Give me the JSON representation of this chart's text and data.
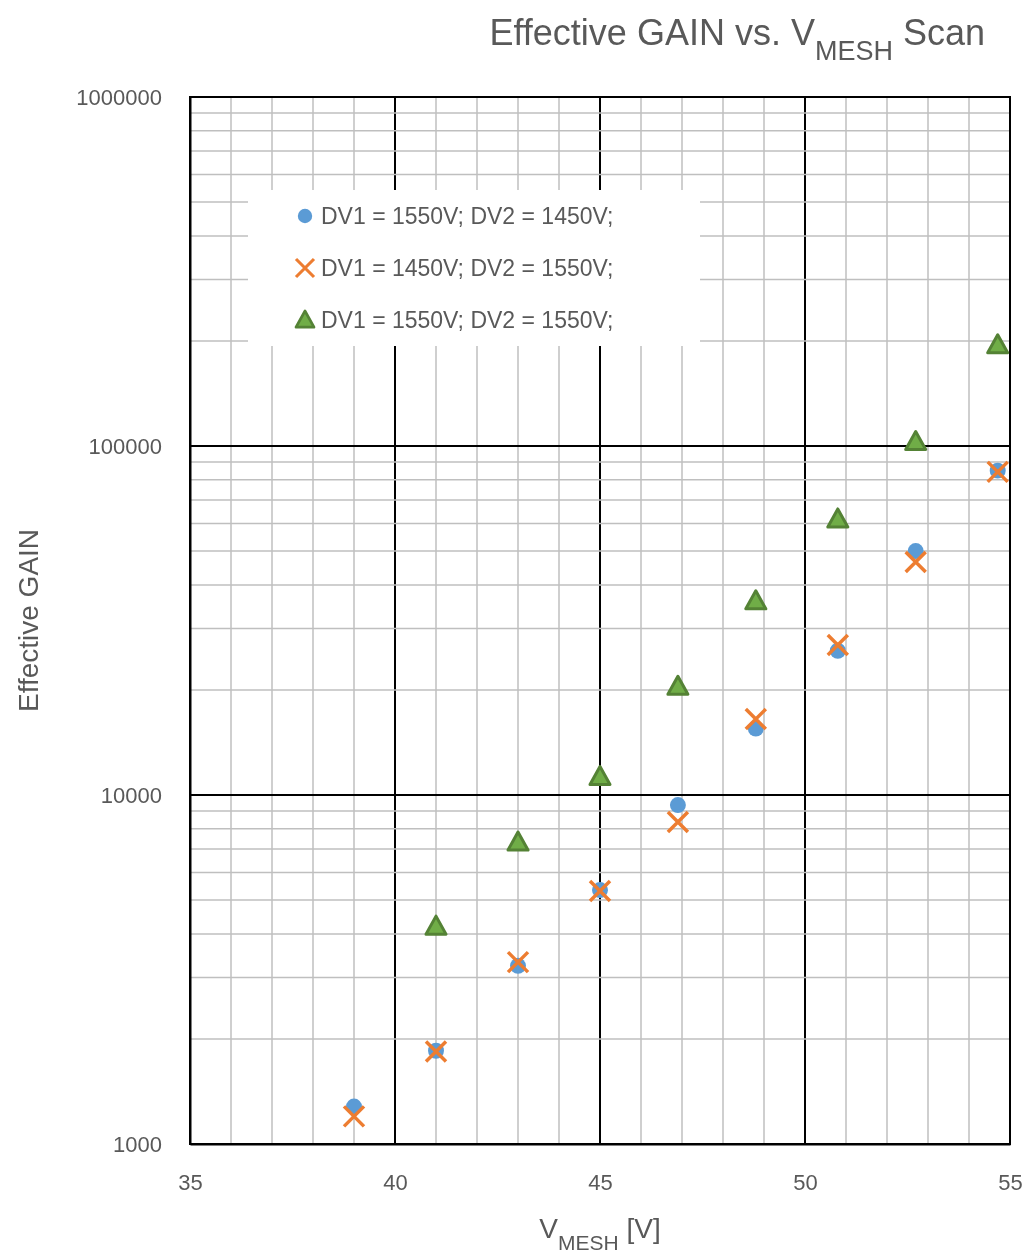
{
  "chart_data": {
    "type": "scatter",
    "title": "Effective GAIN vs. V$_{MESH}$ Scan",
    "xlabel": "V$_{MESH}$ [V]",
    "ylabel": "Effective GAIN",
    "log": "y",
    "grid": true,
    "legend": "top left",
    "xlim": [
      35,
      55
    ],
    "ylim": [
      1000,
      1000000
    ],
    "xticks": [
      35,
      {
        "value": 36,
        "label": null
      },
      {
        "value": 37,
        "label": null
      },
      {
        "value": 38,
        "label": null
      },
      {
        "value": 39,
        "label": null
      },
      40,
      {
        "value": 41,
        "label": null
      },
      {
        "value": 42,
        "label": null
      },
      {
        "value": 43,
        "label": null
      },
      {
        "value": 44,
        "label": null
      },
      45,
      {
        "value": 46,
        "label": null
      },
      {
        "value": 47,
        "label": null
      },
      {
        "value": 48,
        "label": null
      },
      {
        "value": 49,
        "label": null
      },
      50,
      {
        "value": 51,
        "label": null
      },
      {
        "value": 52,
        "label": null
      },
      {
        "value": 53,
        "label": null
      },
      {
        "value": 54,
        "label": null
      },
      55
    ],
    "yticks": [
      1000,
      {
        "value": 2000,
        "label": null
      },
      {
        "value": 3000,
        "label": null
      },
      {
        "value": 4000,
        "label": null
      },
      {
        "value": 5000,
        "label": null
      },
      {
        "value": 6000,
        "label": null
      },
      {
        "value": 7000,
        "label": null
      },
      {
        "value": 8000,
        "label": null
      },
      {
        "value": 9000,
        "label": null
      },
      10000,
      {
        "value": 20000,
        "label": null
      },
      {
        "value": 30000,
        "label": null
      },
      {
        "value": 40000,
        "label": null
      },
      {
        "value": 50000,
        "label": null
      },
      {
        "value": 60000,
        "label": null
      },
      {
        "value": 70000,
        "label": null
      },
      {
        "value": 80000,
        "label": null
      },
      {
        "value": 90000,
        "label": null
      },
      100000,
      {
        "value": 200000,
        "label": null
      },
      {
        "value": 300000,
        "label": null
      },
      {
        "value": 400000,
        "label": null
      },
      {
        "value": 500000,
        "label": null
      },
      {
        "value": 600000,
        "label": null
      },
      {
        "value": 700000,
        "label": null
      },
      {
        "value": 800000,
        "label": null
      },
      {
        "value": 900000,
        "label": null
      },
      1000000
    ],
    "series": [
      {
        "name": "DV1 = 1550V; DV2 = 1450V;",
        "color": "#5b9bd5",
        "marker": "circle",
        "x": [
          39,
          41,
          43,
          45,
          46.9,
          48.8,
          50.8,
          52.7,
          54.7
        ],
        "values": [
          1280,
          1850,
          3240,
          5340,
          9360,
          15500,
          25900,
          50000,
          85000
        ]
      },
      {
        "name": "DV1 = 1450V; DV2 = 1550V;",
        "color": "#ed7d31",
        "marker": "cross",
        "x": [
          39,
          41,
          43,
          45,
          46.9,
          48.8,
          50.8,
          52.7,
          54.7
        ],
        "values": [
          1200,
          1840,
          3320,
          5310,
          8370,
          16500,
          26900,
          46500,
          84300
        ]
      },
      {
        "name": "DV1 = 1550V; DV2 = 1550V;",
        "color": "#548235",
        "marker": "triangle",
        "x": [
          41,
          43,
          45,
          46.9,
          48.8,
          50.8,
          52.7,
          54.7
        ],
        "values": [
          4210,
          7330,
          11300,
          20500,
          36000,
          61800,
          103000,
          195000
        ]
      }
    ]
  }
}
